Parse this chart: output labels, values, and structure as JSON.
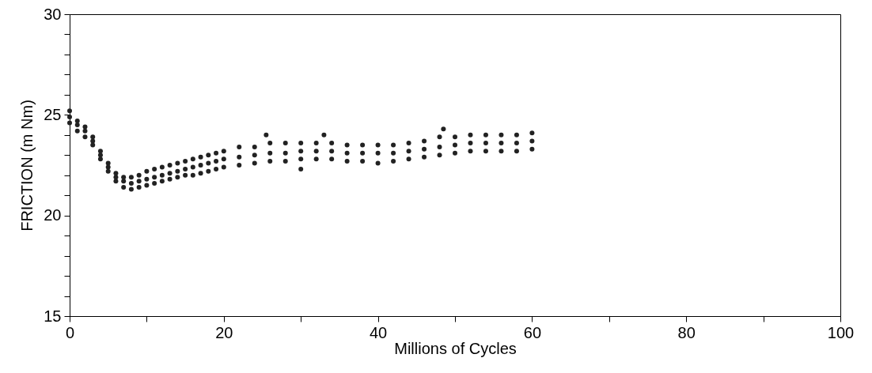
{
  "chart_data": {
    "type": "scatter",
    "xlabel": "Millions of Cycles",
    "ylabel": "FRICTION (m Nm)",
    "xlim": [
      0,
      100
    ],
    "ylim": [
      15,
      30
    ],
    "xticks": [
      0,
      {
        "value": 10,
        "label": null
      },
      20,
      {
        "value": 30,
        "label": null
      },
      40,
      {
        "value": 50,
        "label": null
      },
      60,
      {
        "value": 70,
        "label": null
      },
      80,
      {
        "value": 90,
        "label": null
      },
      100
    ],
    "yticks": [
      15,
      {
        "value": 16,
        "label": null
      },
      {
        "value": 17,
        "label": null
      },
      {
        "value": 18,
        "label": null
      },
      {
        "value": 19,
        "label": null
      },
      20,
      {
        "value": 21,
        "label": null
      },
      {
        "value": 22,
        "label": null
      },
      {
        "value": 23,
        "label": null
      },
      {
        "value": 24,
        "label": null
      },
      25,
      {
        "value": 26,
        "label": null
      },
      {
        "value": 27,
        "label": null
      },
      {
        "value": 28,
        "label": null
      },
      {
        "value": 29,
        "label": null
      },
      30
    ],
    "marker": "circle",
    "grid": false,
    "series": [
      {
        "color": "#222222",
        "x": [
          0,
          0,
          0,
          1,
          1,
          1,
          2,
          2,
          2,
          3,
          3,
          3,
          4,
          4,
          4,
          5,
          5,
          5,
          6,
          6,
          6,
          7,
          7,
          7,
          8,
          8,
          8,
          9,
          9,
          9,
          10,
          10,
          10,
          11,
          11,
          11,
          12,
          12,
          12,
          13,
          13,
          13,
          14,
          14,
          14,
          15,
          15,
          15,
          16,
          16,
          16,
          17,
          17,
          17,
          18,
          18,
          18,
          19,
          19,
          19,
          20,
          20,
          20,
          22,
          22,
          22,
          24,
          24,
          24,
          26,
          26,
          26,
          28,
          28,
          28,
          30,
          30,
          30,
          32,
          32,
          32,
          34,
          34,
          34,
          36,
          36,
          36,
          38,
          38,
          38,
          40,
          40,
          40,
          42,
          42,
          42,
          44,
          44,
          44,
          46,
          46,
          46,
          48,
          48,
          48,
          50,
          50,
          50,
          52,
          52,
          52,
          54,
          54,
          54,
          56,
          56,
          56,
          58,
          58,
          58,
          60,
          60,
          60,
          25.5,
          33,
          48.5,
          30
        ],
        "values": [
          25.2,
          24.9,
          24.6,
          24.7,
          24.5,
          24.2,
          24.4,
          24.2,
          23.9,
          23.9,
          23.7,
          23.5,
          23.2,
          23.0,
          22.8,
          22.6,
          22.4,
          22.2,
          22.1,
          21.9,
          21.7,
          21.9,
          21.7,
          21.4,
          21.9,
          21.6,
          21.3,
          22.0,
          21.7,
          21.4,
          22.2,
          21.8,
          21.5,
          22.3,
          21.9,
          21.6,
          22.4,
          22.0,
          21.7,
          22.5,
          22.1,
          21.8,
          22.6,
          22.2,
          21.9,
          22.7,
          22.3,
          22.0,
          22.8,
          22.4,
          22.0,
          22.9,
          22.5,
          22.1,
          23.0,
          22.6,
          22.2,
          23.1,
          22.7,
          22.3,
          23.2,
          22.8,
          22.4,
          23.4,
          22.9,
          22.5,
          23.4,
          23.0,
          22.6,
          23.6,
          23.1,
          22.7,
          23.6,
          23.1,
          22.7,
          23.6,
          23.2,
          22.8,
          23.6,
          23.2,
          22.8,
          23.6,
          23.2,
          22.8,
          23.5,
          23.1,
          22.7,
          23.5,
          23.1,
          22.7,
          23.5,
          23.1,
          22.6,
          23.5,
          23.1,
          22.7,
          23.6,
          23.2,
          22.8,
          23.7,
          23.3,
          22.9,
          23.9,
          23.4,
          23.0,
          23.9,
          23.5,
          23.1,
          24.0,
          23.6,
          23.2,
          24.0,
          23.6,
          23.2,
          24.0,
          23.6,
          23.2,
          24.0,
          23.6,
          23.2,
          24.1,
          23.7,
          23.3,
          24.0,
          24.0,
          24.3,
          22.3
        ]
      }
    ]
  }
}
